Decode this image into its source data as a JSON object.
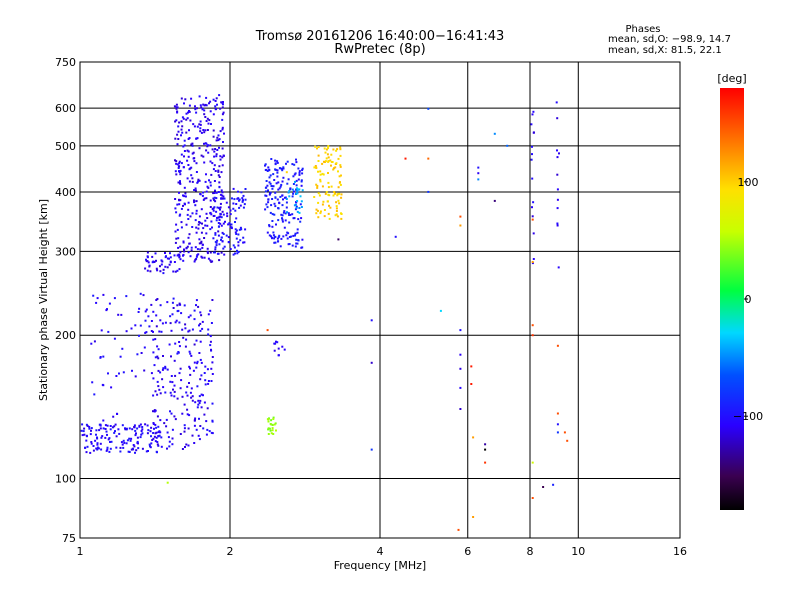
{
  "chart_data": {
    "type": "scatter",
    "title": "Tromsø 20161206 16:40:00−16:41:43",
    "subtitle": "RwPretec (8p)",
    "stats": {
      "heading": "Phases",
      "line1": "mean, sd,O: −98.9, 14.7",
      "line2": "mean, sd,X:  81.5, 22.1"
    },
    "xlabel": "Frequency [MHz]",
    "ylabel": "Stationary phase Virtual Height [km]",
    "x_scale": "log",
    "y_scale": "log",
    "xlim": [
      1,
      16
    ],
    "ylim": [
      75,
      750
    ],
    "x_ticks": [
      {
        "value": 1,
        "label": "1"
      },
      {
        "value": 2,
        "label": "2"
      },
      {
        "value": 4,
        "label": "4"
      },
      {
        "value": 6,
        "label": "6"
      },
      {
        "value": 8,
        "label": "8"
      },
      {
        "value": 10,
        "label": "10"
      },
      {
        "value": 16,
        "label": "16"
      }
    ],
    "y_ticks": [
      {
        "value": 75,
        "label": "75"
      },
      {
        "value": 100,
        "label": "100"
      },
      {
        "value": 200,
        "label": "200"
      },
      {
        "value": 300,
        "label": "300"
      },
      {
        "value": 400,
        "label": "400"
      },
      {
        "value": 500,
        "label": "500"
      },
      {
        "value": 600,
        "label": "600"
      },
      {
        "value": 750,
        "label": "750"
      }
    ],
    "grid": true,
    "colorbar": {
      "label": "[deg]",
      "range": [
        -180,
        180
      ],
      "ticks": [
        {
          "value": 100,
          "label": "100"
        },
        {
          "value": 0,
          "label": "0"
        },
        {
          "value": -100,
          "label": "−100"
        }
      ]
    },
    "series": [
      {
        "clusters": [
          {
            "f_min": 1.0,
            "f_max": 1.45,
            "h_min": 113,
            "h_max": 130,
            "phase": -105,
            "count": 150
          },
          {
            "f_min": 1.4,
            "f_max": 1.85,
            "h_min": 115,
            "h_max": 240,
            "phase": -108,
            "count": 230
          },
          {
            "f_min": 1.05,
            "f_max": 1.55,
            "h_min": 125,
            "h_max": 245,
            "phase": -105,
            "count": 70
          },
          {
            "f_min": 1.35,
            "f_max": 1.6,
            "h_min": 270,
            "h_max": 300,
            "phase": -110,
            "count": 50
          },
          {
            "f_min": 1.55,
            "f_max": 1.95,
            "h_min": 285,
            "h_max": 640,
            "phase": -110,
            "count": 380
          },
          {
            "f_min": 1.85,
            "f_max": 2.15,
            "h_min": 295,
            "h_max": 410,
            "phase": -100,
            "count": 110
          },
          {
            "f_min": 2.35,
            "f_max": 2.8,
            "h_min": 305,
            "h_max": 470,
            "phase": -95,
            "count": 190
          },
          {
            "f_min": 2.6,
            "f_max": 2.8,
            "h_min": 360,
            "h_max": 420,
            "phase": -45,
            "count": 25
          },
          {
            "f_min": 2.95,
            "f_max": 3.35,
            "h_min": 350,
            "h_max": 500,
            "phase": 100,
            "count": 110
          },
          {
            "f_min": 2.38,
            "f_max": 2.48,
            "h_min": 123,
            "h_max": 135,
            "phase": 40,
            "count": 22
          },
          {
            "f_min": 2.45,
            "f_max": 2.6,
            "h_min": 180,
            "h_max": 195,
            "phase": -110,
            "count": 10
          },
          {
            "f_min": 8.05,
            "f_max": 8.15,
            "h_min": 260,
            "h_max": 600,
            "phase": -110,
            "count": 15
          },
          {
            "f_min": 9.05,
            "f_max": 9.15,
            "h_min": 270,
            "h_max": 640,
            "phase": -110,
            "count": 12
          }
        ],
        "points": [
          {
            "x": 1.5,
            "y": 98,
            "phase": 50
          },
          {
            "x": 2.38,
            "y": 205,
            "phase": 150
          },
          {
            "x": 2.6,
            "y": 440,
            "phase": 100
          },
          {
            "x": 3.3,
            "y": 318,
            "phase": -145
          },
          {
            "x": 3.85,
            "y": 215,
            "phase": -100
          },
          {
            "x": 3.85,
            "y": 175,
            "phase": -120
          },
          {
            "x": 3.85,
            "y": 115,
            "phase": -80
          },
          {
            "x": 4.3,
            "y": 322,
            "phase": -100
          },
          {
            "x": 4.5,
            "y": 470,
            "phase": 170
          },
          {
            "x": 5.0,
            "y": 470,
            "phase": 140
          },
          {
            "x": 5.0,
            "y": 598,
            "phase": -70
          },
          {
            "x": 5.0,
            "y": 400,
            "phase": -80
          },
          {
            "x": 5.3,
            "y": 225,
            "phase": -30
          },
          {
            "x": 5.8,
            "y": 355,
            "phase": 150
          },
          {
            "x": 5.8,
            "y": 340,
            "phase": 120
          },
          {
            "x": 5.8,
            "y": 205,
            "phase": -100
          },
          {
            "x": 5.8,
            "y": 182,
            "phase": -110
          },
          {
            "x": 5.8,
            "y": 170,
            "phase": -115
          },
          {
            "x": 5.8,
            "y": 155,
            "phase": -105
          },
          {
            "x": 5.8,
            "y": 140,
            "phase": -120
          },
          {
            "x": 5.75,
            "y": 78,
            "phase": 150
          },
          {
            "x": 6.1,
            "y": 172,
            "phase": 170
          },
          {
            "x": 6.1,
            "y": 158,
            "phase": 170
          },
          {
            "x": 6.15,
            "y": 122,
            "phase": 120
          },
          {
            "x": 6.15,
            "y": 83,
            "phase": 120
          },
          {
            "x": 6.3,
            "y": 450,
            "phase": -100
          },
          {
            "x": 6.3,
            "y": 438,
            "phase": -110
          },
          {
            "x": 6.3,
            "y": 425,
            "phase": -50
          },
          {
            "x": 6.5,
            "y": 118,
            "phase": -130
          },
          {
            "x": 6.5,
            "y": 115,
            "phase": -180
          },
          {
            "x": 6.5,
            "y": 108,
            "phase": 160
          },
          {
            "x": 6.8,
            "y": 530,
            "phase": -50
          },
          {
            "x": 6.8,
            "y": 383,
            "phase": -140
          },
          {
            "x": 7.2,
            "y": 500,
            "phase": -60
          },
          {
            "x": 8.1,
            "y": 350,
            "phase": 150
          },
          {
            "x": 8.1,
            "y": 285,
            "phase": 120
          },
          {
            "x": 8.1,
            "y": 210,
            "phase": 150
          },
          {
            "x": 8.1,
            "y": 200,
            "phase": 160
          },
          {
            "x": 8.1,
            "y": 108,
            "phase": 60
          },
          {
            "x": 8.1,
            "y": 91,
            "phase": 150
          },
          {
            "x": 8.5,
            "y": 96,
            "phase": -150
          },
          {
            "x": 8.9,
            "y": 97,
            "phase": -90
          },
          {
            "x": 9.1,
            "y": 190,
            "phase": 150
          },
          {
            "x": 9.1,
            "y": 137,
            "phase": 150
          },
          {
            "x": 9.1,
            "y": 130,
            "phase": -100
          },
          {
            "x": 9.1,
            "y": 125,
            "phase": -80
          },
          {
            "x": 9.4,
            "y": 125,
            "phase": 150
          },
          {
            "x": 9.5,
            "y": 120,
            "phase": 150
          }
        ]
      }
    ]
  }
}
